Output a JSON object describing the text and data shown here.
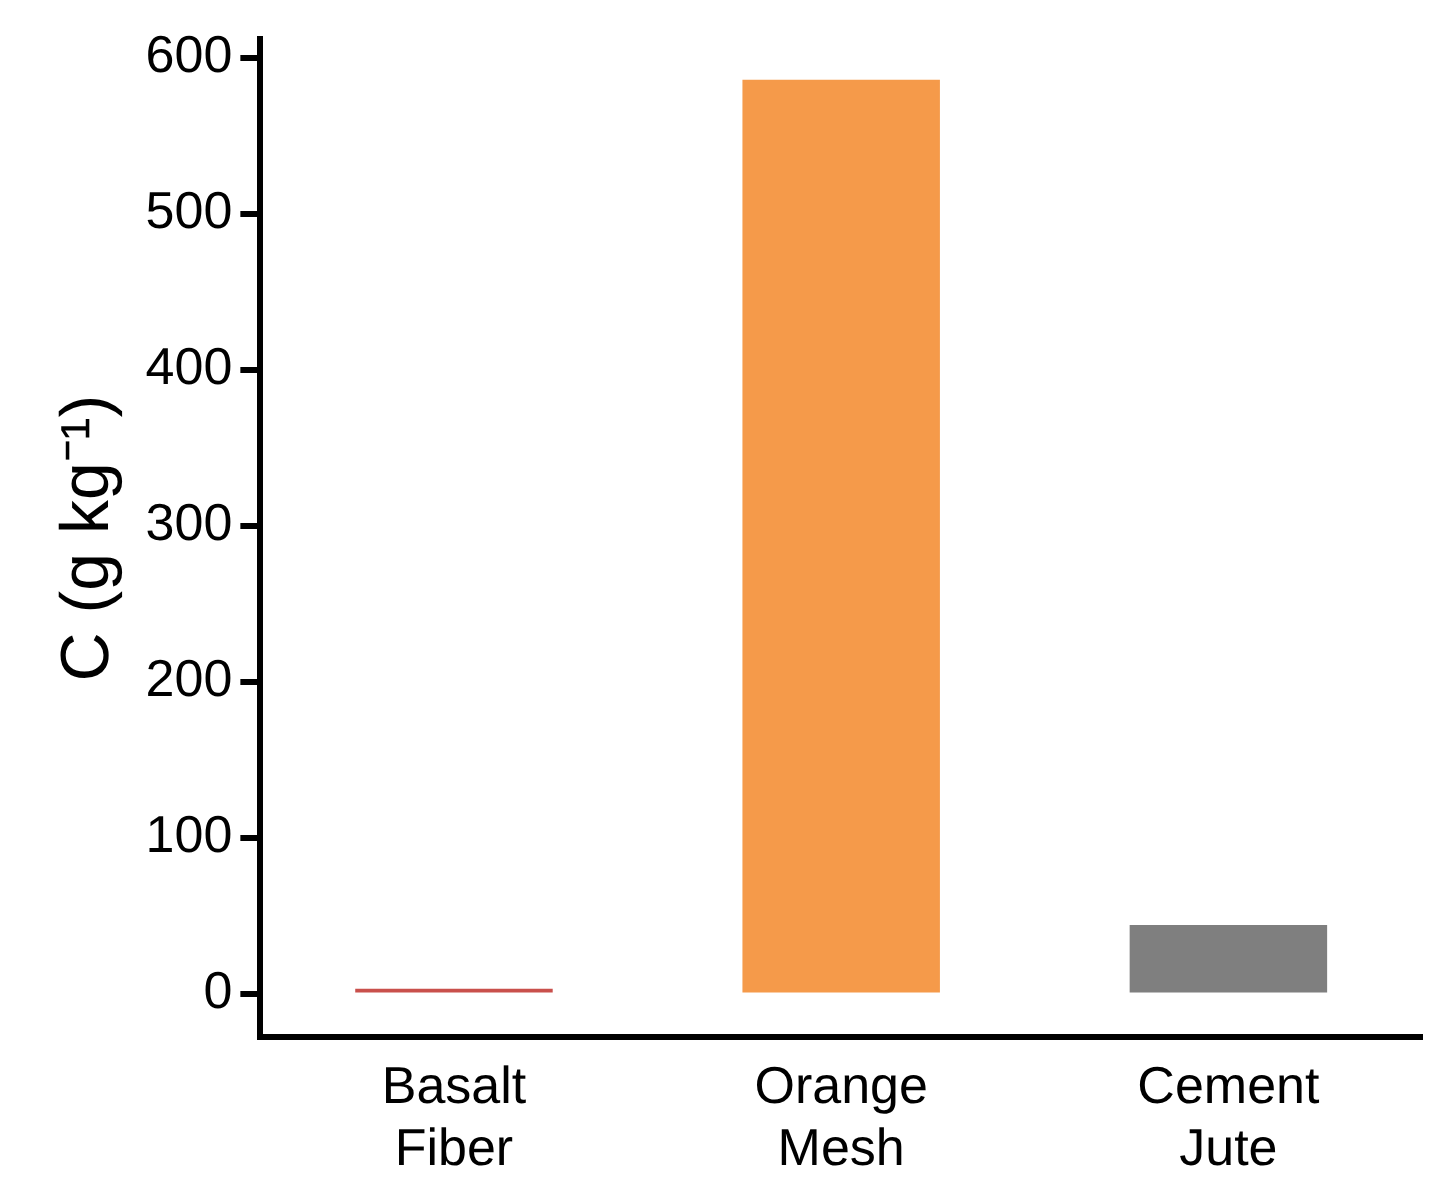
{
  "chart_data": {
    "type": "bar",
    "ylabel": "C (g kg⁻¹)",
    "categories": [
      "Basalt Fiber",
      "Orange Mesh",
      "Cement Jute"
    ],
    "values": [
      3,
      586,
      44
    ],
    "colors": [
      "#c9504c",
      "#f59a4a",
      "#7f7f7f"
    ],
    "ylim": [
      -28,
      612
    ],
    "yticks": [
      0,
      100,
      200,
      300,
      400,
      500,
      600
    ],
    "grid": false,
    "legend": false
  }
}
